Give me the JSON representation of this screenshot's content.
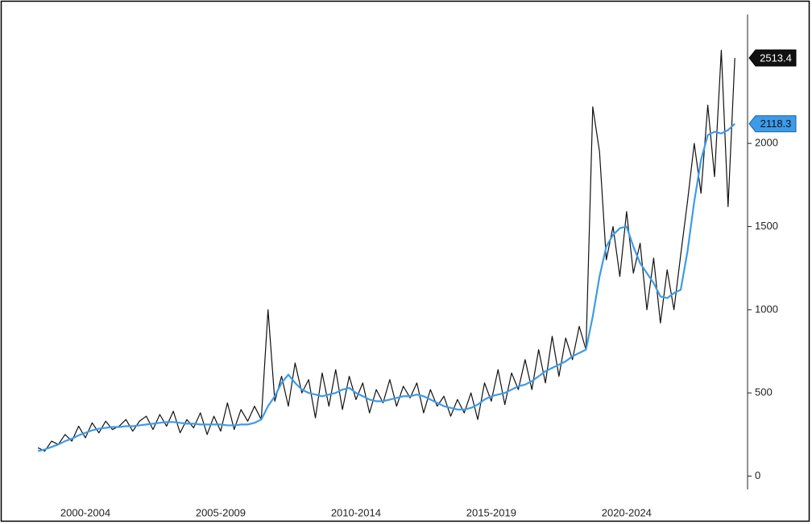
{
  "chart_data": {
    "type": "line",
    "x": [
      2000.75,
      2001,
      2001.25,
      2001.5,
      2001.75,
      2002,
      2002.25,
      2002.5,
      2002.75,
      2003,
      2003.25,
      2003.5,
      2003.75,
      2004,
      2004.25,
      2004.5,
      2004.75,
      2005,
      2005.25,
      2005.5,
      2005.75,
      2006,
      2006.25,
      2006.5,
      2006.75,
      2007,
      2007.25,
      2007.5,
      2007.75,
      2008,
      2008.25,
      2008.5,
      2008.75,
      2009,
      2009.25,
      2009.5,
      2009.75,
      2010,
      2010.25,
      2010.5,
      2010.75,
      2011,
      2011.25,
      2011.5,
      2011.75,
      2012,
      2012.25,
      2012.5,
      2012.75,
      2013,
      2013.25,
      2013.5,
      2013.75,
      2014,
      2014.25,
      2014.5,
      2014.75,
      2015,
      2015.25,
      2015.5,
      2015.75,
      2016,
      2016.25,
      2016.5,
      2016.75,
      2017,
      2017.25,
      2017.5,
      2017.75,
      2018,
      2018.25,
      2018.5,
      2018.75,
      2019,
      2019.25,
      2019.5,
      2019.75,
      2020,
      2020.25,
      2020.5,
      2020.75,
      2021,
      2021.25,
      2021.5,
      2021.75,
      2022,
      2022.25,
      2022.5,
      2022.75,
      2023,
      2023.25,
      2023.5,
      2023.75,
      2024,
      2024.25,
      2024.5,
      2024.75,
      2025,
      2025.25,
      2025.5,
      2025.75,
      2026,
      2026.25,
      2026.5
    ],
    "series": [
      {
        "color": "#111111",
        "axis": "y",
        "values": [
          170,
          150,
          210,
          190,
          250,
          210,
          300,
          230,
          320,
          260,
          330,
          280,
          300,
          340,
          270,
          330,
          360,
          280,
          370,
          300,
          390,
          260,
          340,
          290,
          380,
          250,
          360,
          270,
          440,
          280,
          400,
          330,
          420,
          340,
          1000,
          450,
          600,
          420,
          680,
          500,
          580,
          350,
          620,
          420,
          640,
          400,
          600,
          460,
          560,
          380,
          520,
          440,
          580,
          420,
          540,
          470,
          560,
          380,
          520,
          420,
          480,
          360,
          460,
          380,
          500,
          340,
          560,
          450,
          640,
          430,
          620,
          520,
          700,
          520,
          760,
          560,
          840,
          600,
          830,
          700,
          900,
          760,
          2220,
          1950,
          1300,
          1500,
          1200,
          1590,
          1220,
          1400,
          1000,
          1310,
          920,
          1240,
          1000,
          1330,
          1650,
          2000,
          1700,
          2230,
          1800,
          2560,
          1620,
          2513.4
        ]
      },
      {
        "color": "#3d9be9",
        "axis": "y",
        "values": [
          150,
          160,
          175,
          190,
          210,
          225,
          245,
          260,
          275,
          285,
          290,
          295,
          295,
          300,
          300,
          305,
          310,
          315,
          320,
          325,
          325,
          320,
          315,
          315,
          310,
          310,
          310,
          310,
          305,
          305,
          310,
          310,
          320,
          340,
          420,
          480,
          560,
          610,
          560,
          520,
          500,
          490,
          480,
          490,
          500,
          520,
          530,
          500,
          480,
          460,
          450,
          450,
          460,
          470,
          480,
          480,
          490,
          480,
          460,
          440,
          420,
          410,
          400,
          400,
          410,
          430,
          460,
          480,
          490,
          500,
          520,
          540,
          550,
          570,
          600,
          630,
          650,
          670,
          690,
          720,
          740,
          760,
          960,
          1200,
          1380,
          1450,
          1490,
          1500,
          1380,
          1280,
          1220,
          1160,
          1080,
          1070,
          1100,
          1120,
          1350,
          1650,
          1900,
          2050,
          2070,
          2060,
          2080,
          2118.3
        ]
      }
    ],
    "xlim": [
      2000,
      2027
    ],
    "xticks": [
      {
        "value": 2002.5,
        "label": "2000-2004"
      },
      {
        "value": 2007.5,
        "label": "2005-2009"
      },
      {
        "value": 2012.5,
        "label": "2010-2014"
      },
      {
        "value": 2017.5,
        "label": "2015-2019"
      },
      {
        "value": 2022.5,
        "label": "2020-2024"
      }
    ],
    "ylim": [
      -80,
      2775
    ],
    "yticks": [
      0,
      500,
      1000,
      1500,
      2000
    ],
    "grid": false
  }
}
